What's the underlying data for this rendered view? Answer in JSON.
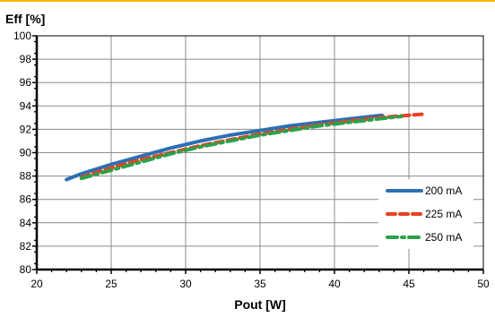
{
  "theme": {
    "top_bar_color": "#f5b800"
  },
  "chart_data": {
    "type": "line",
    "title": "",
    "ylabel": "Eff [%]",
    "xlabel": "Pout [W]",
    "xlim": [
      20,
      50
    ],
    "ylim": [
      80,
      100
    ],
    "x_ticks": [
      "20",
      "25",
      "30",
      "35",
      "40",
      "45",
      "50"
    ],
    "y_ticks": [
      "80",
      "82",
      "84",
      "86",
      "88",
      "90",
      "92",
      "94",
      "96",
      "98",
      "100"
    ],
    "grid": true,
    "legend_position": "bottom-right",
    "series": [
      {
        "name": "200 mA",
        "color": "#2b70b4",
        "style": "solid",
        "x": [
          22,
          23,
          25,
          27,
          29,
          31,
          33,
          35,
          37,
          39,
          41,
          43.2
        ],
        "y": [
          87.7,
          88.2,
          89.0,
          89.7,
          90.4,
          91.0,
          91.5,
          91.9,
          92.3,
          92.6,
          92.9,
          93.2
        ]
      },
      {
        "name": "225 mA",
        "color": "#e8411e",
        "style": "dash",
        "x": [
          23,
          25,
          27,
          29,
          31,
          33,
          35,
          37,
          39,
          41,
          43,
          45,
          46
        ],
        "y": [
          87.9,
          88.7,
          89.4,
          90.0,
          90.6,
          91.1,
          91.6,
          92.0,
          92.4,
          92.7,
          93.0,
          93.2,
          93.3
        ]
      },
      {
        "name": "250 mA",
        "color": "#2aa14b",
        "style": "dash-dot",
        "x": [
          23,
          25,
          27,
          29,
          31,
          33,
          35,
          37,
          39,
          41,
          43,
          44.5
        ],
        "y": [
          87.8,
          88.5,
          89.2,
          89.9,
          90.5,
          91.0,
          91.5,
          91.9,
          92.3,
          92.6,
          92.9,
          93.1
        ]
      }
    ]
  }
}
